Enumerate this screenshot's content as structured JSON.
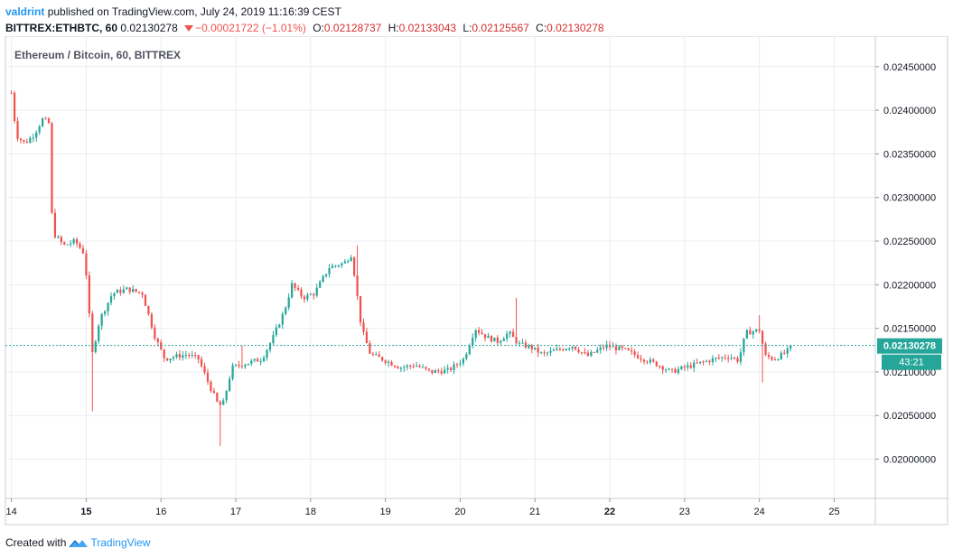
{
  "header": {
    "username": "valdrint",
    "published_text": "published on TradingView.com, July 24, 2019 11:16:39 CEST",
    "symbol_label": "BITTREX:ETHBTC, 60",
    "last_value": "0.02130278",
    "change_text": "−0.00021722 (−1.01%)",
    "o_label": "O:",
    "o_value": "0.02128737",
    "h_label": "H:",
    "h_value": "0.02133043",
    "l_label": "L:",
    "l_value": "0.02125567",
    "c_label": "C:",
    "c_value": "0.02130278"
  },
  "legend_title": "Ethereum / Bitcoin, 60, BITTREX",
  "last_price_label": "0.02130278",
  "countdown_label": "43:21",
  "footer": {
    "created_with": "Created with",
    "brand": "TradingView"
  },
  "colors": {
    "up": "#26a69a",
    "down": "#ef5350",
    "grid": "#e9edf2",
    "axis_text": "#131722",
    "price_line": "#26a69a",
    "brand": "#2196f3"
  },
  "chart_data": {
    "type": "candlestick",
    "title": "Ethereum / Bitcoin, 60, BITTREX",
    "xlabel": "",
    "ylabel": "",
    "y_ticks": [
      0.02,
      0.0205,
      0.021,
      0.0215,
      0.022,
      0.0225,
      0.023,
      0.0235,
      0.024,
      0.0245
    ],
    "y_tick_labels": [
      "0.02000000",
      "0.02050000",
      "0.02100000",
      "0.02150000",
      "0.02200000",
      "0.02250000",
      "0.02300000",
      "0.02350000",
      "0.02400000",
      "0.02450000"
    ],
    "ylim": [
      0.01955,
      0.02485
    ],
    "x_tick_labels": [
      "14",
      "15",
      "16",
      "17",
      "18",
      "19",
      "20",
      "21",
      "22",
      "23",
      "24",
      "25"
    ],
    "x_tick_days": [
      14,
      15,
      16,
      17,
      18,
      19,
      20,
      21,
      22,
      23,
      24,
      25
    ],
    "bold_x_ticks": [
      "15",
      "22"
    ],
    "xlim": [
      13.92,
      25.55
    ],
    "last_price": 0.02130278,
    "grid": true,
    "keypoints": [
      [
        14.0,
        0.0242
      ],
      [
        14.03,
        0.02395
      ],
      [
        14.08,
        0.0237
      ],
      [
        14.18,
        0.02362
      ],
      [
        14.3,
        0.02372
      ],
      [
        14.42,
        0.0239
      ],
      [
        14.5,
        0.02385
      ],
      [
        14.55,
        0.0226
      ],
      [
        14.7,
        0.02245
      ],
      [
        14.85,
        0.0225
      ],
      [
        14.98,
        0.02235
      ],
      [
        15.08,
        0.0212
      ],
      [
        15.18,
        0.0216
      ],
      [
        15.35,
        0.0219
      ],
      [
        15.55,
        0.02195
      ],
      [
        15.75,
        0.0219
      ],
      [
        15.92,
        0.0214
      ],
      [
        16.05,
        0.02115
      ],
      [
        16.2,
        0.02118
      ],
      [
        16.35,
        0.0212
      ],
      [
        16.5,
        0.02115
      ],
      [
        16.62,
        0.0209
      ],
      [
        16.75,
        0.02065
      ],
      [
        16.82,
        0.0206
      ],
      [
        16.95,
        0.02105
      ],
      [
        17.15,
        0.0211
      ],
      [
        17.35,
        0.02115
      ],
      [
        17.5,
        0.0214
      ],
      [
        17.65,
        0.0217
      ],
      [
        17.75,
        0.022
      ],
      [
        17.9,
        0.02185
      ],
      [
        18.05,
        0.0219
      ],
      [
        18.25,
        0.0222
      ],
      [
        18.45,
        0.02225
      ],
      [
        18.55,
        0.02235
      ],
      [
        18.68,
        0.0215
      ],
      [
        18.8,
        0.0212
      ],
      [
        18.95,
        0.02115
      ],
      [
        19.2,
        0.02105
      ],
      [
        19.4,
        0.02108
      ],
      [
        19.6,
        0.021
      ],
      [
        19.85,
        0.02102
      ],
      [
        20.05,
        0.02115
      ],
      [
        20.2,
        0.0215
      ],
      [
        20.35,
        0.0214
      ],
      [
        20.5,
        0.02135
      ],
      [
        20.65,
        0.02145
      ],
      [
        20.78,
        0.02132
      ],
      [
        20.95,
        0.02128
      ],
      [
        21.1,
        0.0212
      ],
      [
        21.3,
        0.02125
      ],
      [
        21.5,
        0.0213
      ],
      [
        21.7,
        0.02118
      ],
      [
        21.95,
        0.0213
      ],
      [
        22.2,
        0.02125
      ],
      [
        22.45,
        0.02115
      ],
      [
        22.65,
        0.02108
      ],
      [
        22.82,
        0.021
      ],
      [
        23.0,
        0.02105
      ],
      [
        23.2,
        0.0211
      ],
      [
        23.4,
        0.02115
      ],
      [
        23.6,
        0.02118
      ],
      [
        23.72,
        0.02113
      ],
      [
        23.82,
        0.02145
      ],
      [
        24.0,
        0.02148
      ],
      [
        24.08,
        0.02118
      ],
      [
        24.2,
        0.02115
      ],
      [
        24.35,
        0.02122
      ],
      [
        24.45,
        0.02130278
      ]
    ],
    "spikes": [
      [
        15.08,
        0.02055
      ],
      [
        16.78,
        0.02015
      ],
      [
        17.08,
        0.0213
      ],
      [
        18.62,
        0.02245
      ],
      [
        20.75,
        0.02185
      ],
      [
        24.05,
        0.02088
      ],
      [
        24.02,
        0.02165
      ]
    ]
  }
}
